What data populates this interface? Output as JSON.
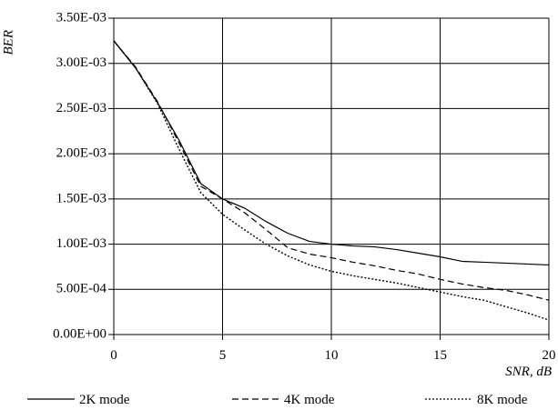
{
  "chart_data": {
    "type": "line",
    "xlabel": "SNR, dB",
    "ylabel": "BER",
    "xlim": [
      0,
      20
    ],
    "ylim": [
      0,
      0.0035
    ],
    "grid": true,
    "legend_position": "bottom",
    "x_ticks": [
      {
        "value": 0,
        "label": "0"
      },
      {
        "value": 5,
        "label": "5"
      },
      {
        "value": 10,
        "label": "10"
      },
      {
        "value": 15,
        "label": "15"
      },
      {
        "value": 20,
        "label": "20"
      }
    ],
    "y_ticks": [
      {
        "value": 0.0,
        "label": "0.00E+00"
      },
      {
        "value": 0.0005,
        "label": "5.00E-04"
      },
      {
        "value": 0.001,
        "label": "1.00E-03"
      },
      {
        "value": 0.0015,
        "label": "1.50E-03"
      },
      {
        "value": 0.002,
        "label": "2.00E-03"
      },
      {
        "value": 0.0025,
        "label": "2.50E-03"
      },
      {
        "value": 0.003,
        "label": "3.00E-03"
      },
      {
        "value": 0.0035,
        "label": "3.50E-03"
      }
    ],
    "x": [
      0,
      1,
      2,
      3,
      4,
      5,
      6,
      7,
      8,
      9,
      10,
      11,
      12,
      13,
      14,
      15,
      16,
      17,
      18,
      19,
      20
    ],
    "series": [
      {
        "name": "2K mode",
        "style": "solid",
        "values": [
          0.00325,
          0.00295,
          0.00257,
          0.00215,
          0.00167,
          0.0015,
          0.0014,
          0.00125,
          0.00112,
          0.00103,
          0.001,
          0.00098,
          0.00097,
          0.00094,
          0.0009,
          0.00086,
          0.00081,
          0.0008,
          0.00079,
          0.00078,
          0.00077
        ]
      },
      {
        "name": "4K mode",
        "style": "dashed",
        "values": [
          0.00325,
          0.00296,
          0.00258,
          0.00212,
          0.00164,
          0.0015,
          0.00135,
          0.00116,
          0.00096,
          0.00089,
          0.00085,
          0.0008,
          0.00076,
          0.00071,
          0.00067,
          0.00061,
          0.00056,
          0.00052,
          0.00049,
          0.00044,
          0.00038
        ]
      },
      {
        "name": "8K mode",
        "style": "dotted",
        "values": [
          0.00325,
          0.00295,
          0.00256,
          0.00205,
          0.00157,
          0.00133,
          0.00116,
          0.001,
          0.00087,
          0.00077,
          0.0007,
          0.00065,
          0.00061,
          0.00057,
          0.00052,
          0.00047,
          0.00042,
          0.00038,
          0.00031,
          0.00024,
          0.00016
        ]
      }
    ]
  }
}
